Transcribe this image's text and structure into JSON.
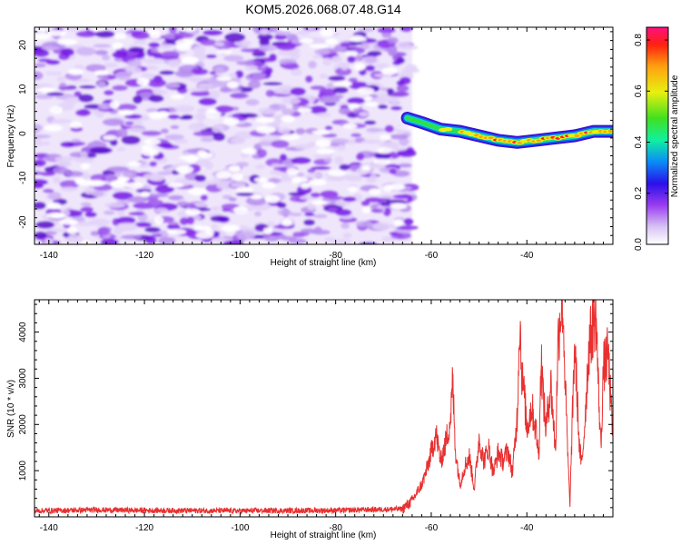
{
  "title": "KOM5.2026.068.07.48.G14",
  "chart_data": [
    {
      "type": "heatmap",
      "name": "spectrogram",
      "xlabel": "Height of straight line (km)",
      "ylabel": "Frequency (Hz)",
      "xlim": [
        -143,
        -22
      ],
      "ylim": [
        -25,
        24
      ],
      "xticks": [
        -140,
        -120,
        -100,
        -80,
        -60,
        -40
      ],
      "yticks": [
        -20,
        -10,
        0,
        10,
        20
      ],
      "colorbar": {
        "label": "Normalized spectral amplitude",
        "range": [
          0.0,
          0.85
        ],
        "ticks": [
          0.0,
          0.2,
          0.4,
          0.6,
          0.8
        ]
      },
      "noise_region_x": [
        -143,
        -64
      ],
      "signal_track": {
        "x": [
          -65,
          -62,
          -58,
          -54,
          -50,
          -46,
          -42,
          -38,
          -34,
          -30,
          -26,
          -22
        ],
        "frequency": [
          3.5,
          2.5,
          1.0,
          0.5,
          -0.5,
          -1.5,
          -2.0,
          -1.5,
          -1.0,
          -0.5,
          0.5,
          0.5
        ],
        "amplitude": [
          0.25,
          0.35,
          0.45,
          0.55,
          0.65,
          0.8,
          0.75,
          0.65,
          0.7,
          0.8,
          0.75,
          0.6
        ]
      }
    },
    {
      "type": "line",
      "name": "snr",
      "xlabel": "Height of straight line (km)",
      "ylabel": "SNR (10 * v/v)",
      "xlim": [
        -143,
        -22
      ],
      "ylim": [
        0,
        4700
      ],
      "xticks": [
        -140,
        -120,
        -100,
        -80,
        -60,
        -40
      ],
      "yticks": [
        1000,
        2000,
        3000,
        4000
      ],
      "color": "#e83030",
      "x": [
        -143,
        -130,
        -120,
        -100,
        -80,
        -66,
        -64,
        -62,
        -61,
        -60,
        -59,
        -58,
        -57,
        -56,
        -55.5,
        -55,
        -54,
        -53,
        -52,
        -51,
        -50,
        -49,
        -48,
        -47,
        -46,
        -45,
        -44,
        -43,
        -42,
        -41.5,
        -41,
        -40.5,
        -40,
        -39,
        -38,
        -37.5,
        -37,
        -36.5,
        -36,
        -35,
        -34,
        -33.5,
        -33,
        -32.5,
        -32,
        -31.5,
        -31,
        -30,
        -29,
        -28.5,
        -28,
        -27,
        -26,
        -25.5,
        -25,
        -24.5,
        -24,
        -23,
        -22.2,
        -22
      ],
      "y": [
        130,
        150,
        140,
        130,
        140,
        170,
        350,
        700,
        1000,
        1400,
        1800,
        1200,
        1600,
        2100,
        2950,
        1500,
        700,
        1100,
        1300,
        600,
        1700,
        1200,
        1500,
        950,
        1400,
        1200,
        1450,
        950,
        2200,
        4350,
        3000,
        2600,
        1900,
        2400,
        1800,
        1300,
        3450,
        2500,
        1900,
        2900,
        1400,
        3750,
        4400,
        4700,
        3000,
        1500,
        250,
        3800,
        1500,
        1100,
        1850,
        3700,
        4250,
        4350,
        2700,
        1500,
        3200,
        3550,
        2000,
        1800
      ]
    }
  ]
}
